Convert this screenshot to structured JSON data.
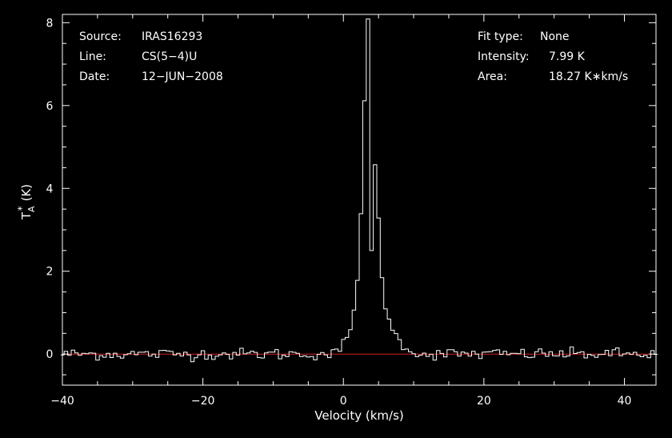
{
  "chart_data": {
    "type": "line",
    "xlabel": "Velocity (km/s)",
    "ylabel_main": "T",
    "ylabel_sub": "A",
    "ylabel_sup": "*",
    "ylabel_unit": "(K)",
    "xlim": [
      -40,
      44.5
    ],
    "ylim": [
      -0.75,
      8.2
    ],
    "x_ticks": [
      -40,
      -20,
      0,
      20,
      40
    ],
    "y_ticks": [
      0,
      2,
      4,
      6,
      8
    ],
    "x_tick_labels": [
      "−40",
      "−20",
      "0",
      "20",
      "40"
    ],
    "y_tick_labels": [
      "0",
      "2",
      "4",
      "6",
      "8"
    ],
    "baseline": 0,
    "baseline_color": "#d42020",
    "line_color": "#ffffff",
    "info_left": [
      {
        "label": "Source:",
        "value": "IRAS16293"
      },
      {
        "label": "Line:",
        "value": "CS(5−4)U"
      },
      {
        "label": "Date:",
        "value": "12−JUN−2008"
      }
    ],
    "info_right": [
      {
        "label": "Fit type:",
        "value": "None"
      },
      {
        "label": "Intensity:",
        "value": "7.99 K"
      },
      {
        "label": "Area:",
        "value": "18.27 K∗km/s"
      }
    ],
    "series": [
      {
        "step_width": 0.5,
        "x": [
          -1.0,
          -0.5,
          0.0,
          0.5,
          1.0,
          1.5,
          2.0,
          2.5,
          3.0,
          3.5,
          4.0,
          4.5,
          5.0,
          5.5,
          6.0,
          6.5,
          7.0,
          7.5,
          8.0,
          8.5,
          9.0,
          9.5,
          10.0,
          10.5,
          11.0
        ],
        "values": [
          0.02,
          0.12,
          0.25,
          0.3,
          0.6,
          1.1,
          1.9,
          3.4,
          6.0,
          7.99,
          2.5,
          4.5,
          3.3,
          1.8,
          1.2,
          0.9,
          0.6,
          0.42,
          0.3,
          0.25,
          0.18,
          0.1,
          0.05,
          0.02,
          0.0
        ],
        "noise_rms": 0.07
      }
    ]
  }
}
